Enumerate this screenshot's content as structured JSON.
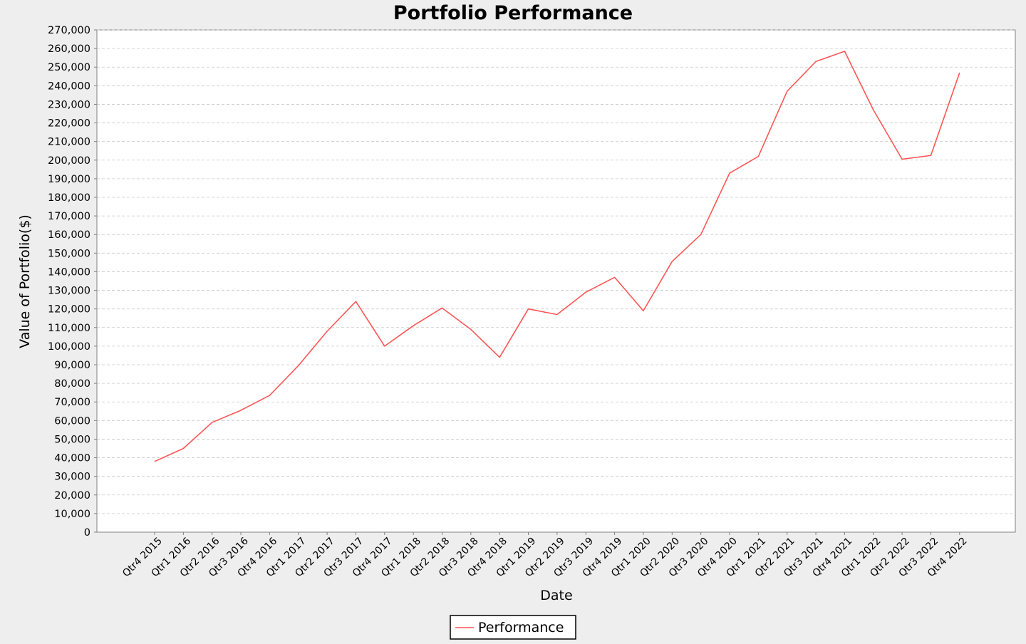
{
  "chart_data": {
    "type": "line",
    "title": "Portfolio Performance",
    "xlabel": "Date",
    "ylabel": "Value of Portfolio($)",
    "ylim": [
      0,
      270000
    ],
    "ytick_step": 10000,
    "grid": true,
    "legend_placement": "bottom-center",
    "categories": [
      "Qtr4 2015",
      "Qtr1 2016",
      "Qtr2 2016",
      "Qtr3 2016",
      "Qtr4 2016",
      "Qtr1 2017",
      "Qtr2 2017",
      "Qtr3 2017",
      "Qtr4 2017",
      "Qtr1 2018",
      "Qtr2 2018",
      "Qtr3 2018",
      "Qtr4 2018",
      "Qtr1 2019",
      "Qtr2 2019",
      "Qtr3 2019",
      "Qtr4 2019",
      "Qtr1 2020",
      "Qtr2 2020",
      "Qtr3 2020",
      "Qtr4 2020",
      "Qtr1 2021",
      "Qtr2 2021",
      "Qtr3 2021",
      "Qtr4 2021",
      "Qtr1 2022",
      "Qtr2 2022",
      "Qtr3 2022",
      "Qtr4 2022"
    ],
    "series": [
      {
        "name": "Performance",
        "color": "#ff5555",
        "values": [
          38000,
          45000,
          59000,
          65500,
          73500,
          89500,
          108000,
          124000,
          100000,
          111000,
          120500,
          109000,
          94000,
          120000,
          117000,
          129000,
          137000,
          119000,
          145500,
          160000,
          193000,
          202000,
          237000,
          253000,
          258500,
          227000,
          200500,
          202500,
          247000
        ]
      }
    ],
    "colors": {
      "background": "#eeeeee",
      "plot_background": "#ffffff",
      "gridline": "#c8c8c8",
      "axis": "#808080"
    }
  }
}
